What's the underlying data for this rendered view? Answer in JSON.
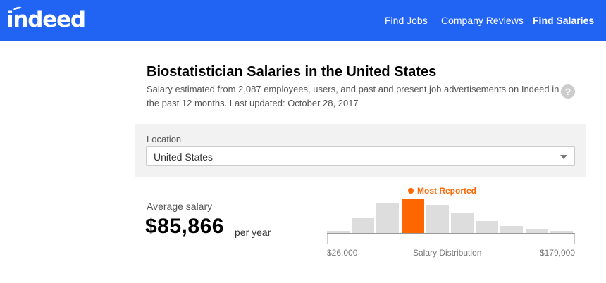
{
  "header": {
    "logo_text": "indeed",
    "nav": {
      "find_jobs": "Find Jobs",
      "company_reviews": "Company Reviews",
      "find_salaries": "Find Salaries"
    }
  },
  "page": {
    "title": "Biostatistician Salaries in the United States",
    "subtitle": "Salary estimated from 2,087 employees, users, and past and present job advertisements on Indeed in the past 12 months. Last updated: October 28, 2017",
    "help_icon": "?"
  },
  "location": {
    "label": "Location",
    "selected": "United States"
  },
  "average_salary": {
    "label": "Average salary",
    "amount": "$85,866",
    "period": "per year"
  },
  "chart_data": {
    "type": "bar",
    "title": "Salary Distribution",
    "xlabel": "Salary Distribution",
    "x_range": [
      26000,
      179000
    ],
    "x_tick_labels": [
      "$26,000",
      "$179,000"
    ],
    "values": [
      0.06,
      0.43,
      0.9,
      1.0,
      0.84,
      0.58,
      0.36,
      0.21,
      0.12,
      0.07
    ],
    "highlight_index": 3,
    "highlight_label": "Most Reported",
    "colors": {
      "bar": "#dddddd",
      "highlight": "#ff6600"
    }
  },
  "colors": {
    "brand": "#2164f3",
    "accent": "#ff6600"
  }
}
